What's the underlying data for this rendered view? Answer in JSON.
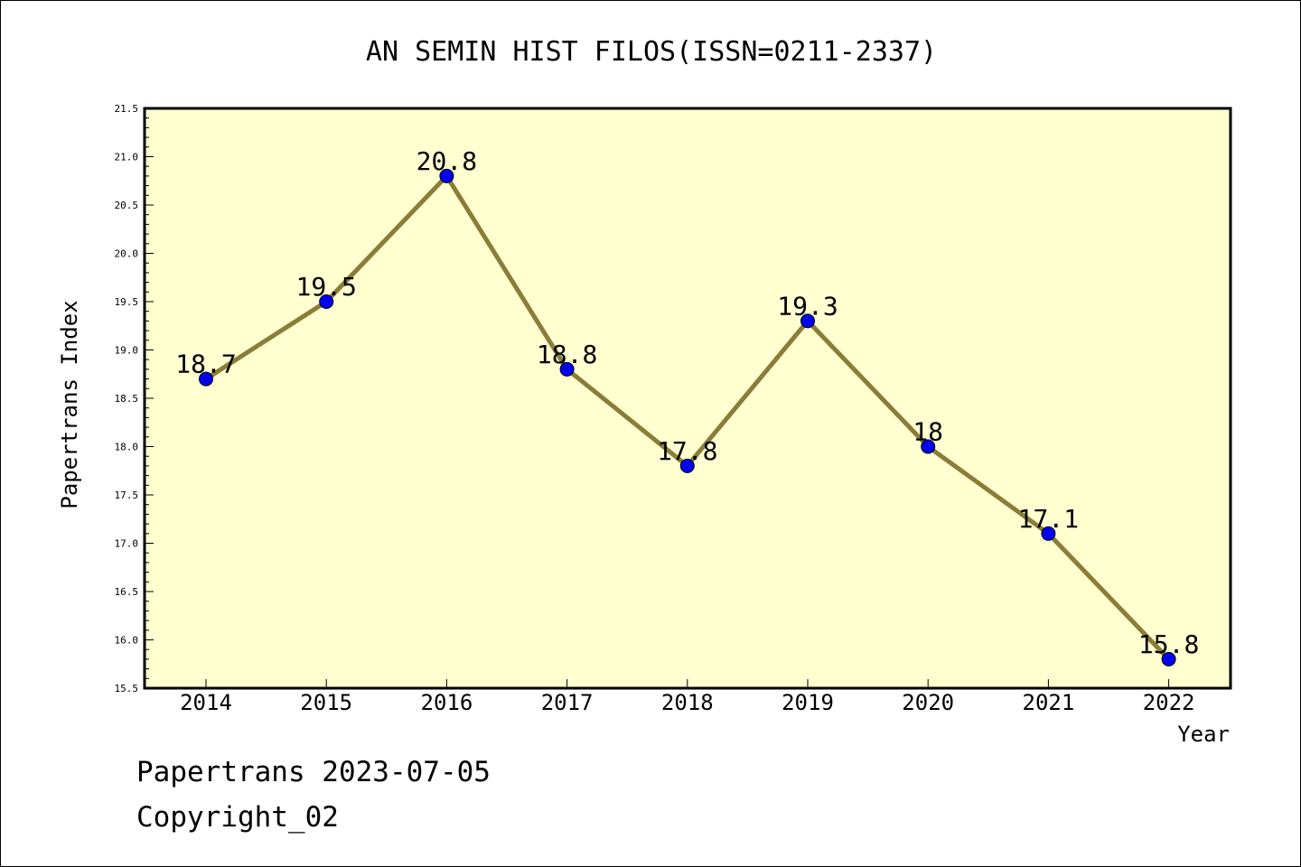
{
  "chart_data": {
    "type": "line",
    "title": "AN SEMIN HIST FILOS(ISSN=0211-2337)",
    "xlabel": "Year",
    "ylabel": "Papertrans Index",
    "categories": [
      "2014",
      "2015",
      "2016",
      "2017",
      "2018",
      "2019",
      "2020",
      "2021",
      "2022"
    ],
    "series": [
      {
        "values": [
          18.7,
          19.5,
          20.8,
          18.8,
          17.8,
          19.3,
          18.0,
          17.1,
          15.8
        ],
        "labels": [
          "18.7",
          "19.5",
          "20.8",
          "18.8",
          "17.8",
          "19.3",
          "18",
          "17.1",
          "15.8"
        ],
        "line_color": "#8b7d37",
        "marker_color": "#0000ee"
      }
    ],
    "ylim": [
      15.5,
      21.5
    ],
    "yticks": [
      "15.5",
      "16.0",
      "16.5",
      "17.0",
      "17.5",
      "18.0",
      "18.5",
      "19.0",
      "19.5",
      "20.0",
      "20.5",
      "21.0",
      "21.5"
    ],
    "plot_background": "#ffffd0",
    "grid": false,
    "legend": "none"
  },
  "footer": {
    "line1": "Papertrans 2023-07-05",
    "line2": "Copyright_02"
  }
}
